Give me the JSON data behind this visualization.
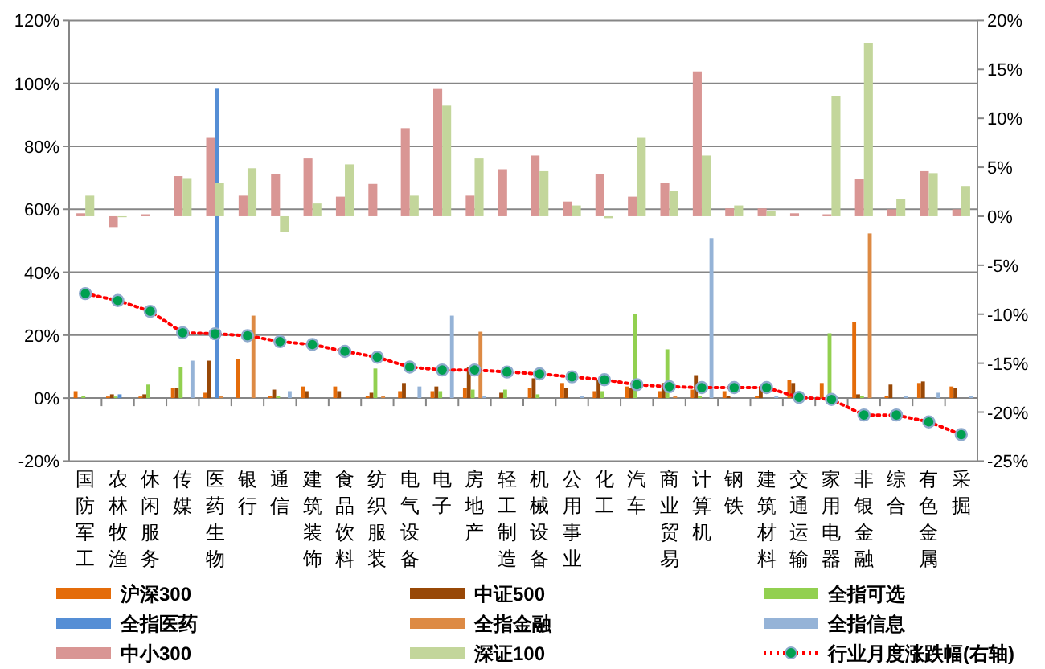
{
  "chart_data": {
    "type": "bar",
    "categories": [
      "国防军工",
      "农林牧渔",
      "休闲服务",
      "传媒",
      "医药生物",
      "银行",
      "通信",
      "建筑装饰",
      "食品饮料",
      "纺织服装",
      "电气设备",
      "电子",
      "房地产",
      "轻工制造",
      "机械设备",
      "公用事业",
      "化工",
      "汽车",
      "商业贸易",
      "计算机",
      "钢铁",
      "建筑材料",
      "交通运输",
      "家用电器",
      "非银金融",
      "综合",
      "有色金属",
      "采掘"
    ],
    "series": [
      {
        "name": "沪深300",
        "color": "#e46c0a",
        "values": [
          2.2,
          0.5,
          0.5,
          3.2,
          1.7,
          12.4,
          0.7,
          3.7,
          3.7,
          0.7,
          2.2,
          2.2,
          3.2,
          null,
          3.2,
          4.8,
          2.2,
          3.7,
          2.2,
          2.7,
          2.2,
          0.7,
          5.8,
          4.8,
          24.2,
          0.7,
          4.8,
          3.7
        ]
      },
      {
        "name": "中证500",
        "color": "#984807",
        "values": [
          null,
          1.2,
          1.2,
          3.2,
          11.9,
          null,
          2.7,
          2.2,
          2.2,
          1.7,
          4.8,
          3.7,
          9.9,
          1.7,
          6.3,
          3.2,
          5.8,
          3.2,
          4.8,
          7.3,
          0.7,
          3.7,
          4.8,
          null,
          1.2,
          4.3,
          5.3,
          3.2
        ]
      },
      {
        "name": "全指可选",
        "color": "#92d050",
        "values": [
          0.7,
          0.5,
          4.3,
          9.9,
          null,
          null,
          0.7,
          null,
          null,
          9.4,
          null,
          2.2,
          2.7,
          2.7,
          1.2,
          null,
          2.2,
          26.7,
          15.5,
          0.7,
          null,
          null,
          null,
          20.6,
          0.7,
          null,
          null,
          null
        ]
      },
      {
        "name": "全指医药",
        "color": "#558ed5",
        "values": [
          null,
          1.2,
          null,
          null,
          98.3,
          null,
          null,
          null,
          null,
          null,
          null,
          null,
          null,
          null,
          null,
          null,
          null,
          null,
          null,
          null,
          null,
          null,
          null,
          null,
          null,
          null,
          null,
          null
        ]
      },
      {
        "name": "全指金融",
        "color": "#dd8a44",
        "values": [
          null,
          null,
          null,
          null,
          0.7,
          26.2,
          null,
          null,
          null,
          0.7,
          null,
          null,
          21.1,
          null,
          null,
          null,
          null,
          null,
          0.7,
          null,
          null,
          null,
          null,
          null,
          52.3,
          null,
          null,
          null
        ]
      },
      {
        "name": "全指信息",
        "color": "#95b3d7",
        "values": [
          null,
          null,
          null,
          11.9,
          null,
          null,
          2.2,
          null,
          null,
          null,
          3.7,
          26.2,
          0.7,
          null,
          null,
          0.7,
          null,
          null,
          null,
          50.8,
          null,
          0.7,
          null,
          null,
          null,
          0.7,
          1.7,
          0.7
        ]
      },
      {
        "name": "中小300",
        "color": "#d99694",
        "axis": "y2",
        "values": [
          0.3,
          -1.1,
          0.2,
          4.1,
          8.0,
          2.1,
          4.3,
          5.9,
          2.0,
          3.3,
          9.0,
          13.0,
          2.1,
          4.8,
          6.2,
          1.5,
          4.3,
          2.0,
          3.4,
          14.8,
          0.8,
          0.8,
          0.3,
          0.2,
          3.8,
          0.7,
          4.6,
          0.7
        ]
      },
      {
        "name": "深证100",
        "color": "#c3d69b",
        "axis": "y2",
        "values": [
          2.1,
          -0.1,
          null,
          3.9,
          3.4,
          4.9,
          -1.6,
          1.3,
          5.3,
          null,
          2.1,
          11.3,
          5.9,
          null,
          4.6,
          1.1,
          -0.2,
          8.0,
          2.6,
          6.2,
          1.1,
          0.5,
          null,
          12.3,
          17.7,
          1.8,
          4.4,
          3.1
        ]
      },
      {
        "name": "行业月度涨跌幅(右轴)",
        "type": "line",
        "color": "#ff0000",
        "axis": "y2",
        "marker": "circle",
        "line_style": "dotted",
        "values": [
          -7.9,
          -8.6,
          -9.7,
          -11.9,
          -12.0,
          -12.2,
          -12.8,
          -13.1,
          -13.8,
          -14.4,
          -15.4,
          -15.7,
          -15.7,
          -15.9,
          -16.1,
          -16.4,
          -16.7,
          -17.2,
          -17.4,
          -17.5,
          -17.5,
          -17.5,
          -18.5,
          -18.7,
          -20.3,
          -20.3,
          -21.0,
          -22.3
        ]
      }
    ],
    "ylim": [
      -20,
      120
    ],
    "yticks": [
      {
        "value": -20,
        "label": "-20%"
      },
      {
        "value": 0,
        "label": "0%"
      },
      {
        "value": 20,
        "label": "20%"
      },
      {
        "value": 40,
        "label": "40%"
      },
      {
        "value": 60,
        "label": "60%"
      },
      {
        "value": 80,
        "label": "80%"
      },
      {
        "value": 100,
        "label": "100%"
      },
      {
        "value": 120,
        "label": "120%"
      }
    ],
    "y2lim": [
      -25,
      20
    ],
    "y2ticks": [
      {
        "value": -25,
        "label": "-25%"
      },
      {
        "value": -20,
        "label": "-20%"
      },
      {
        "value": -15,
        "label": "-15%"
      },
      {
        "value": -10,
        "label": "-10%"
      },
      {
        "value": -5,
        "label": "-5%"
      },
      {
        "value": 0,
        "label": "0%"
      },
      {
        "value": 5,
        "label": "5%"
      },
      {
        "value": 10,
        "label": "10%"
      },
      {
        "value": 15,
        "label": "15%"
      },
      {
        "value": 20,
        "label": "20%"
      }
    ],
    "grid": "y",
    "legend": "bottom"
  }
}
